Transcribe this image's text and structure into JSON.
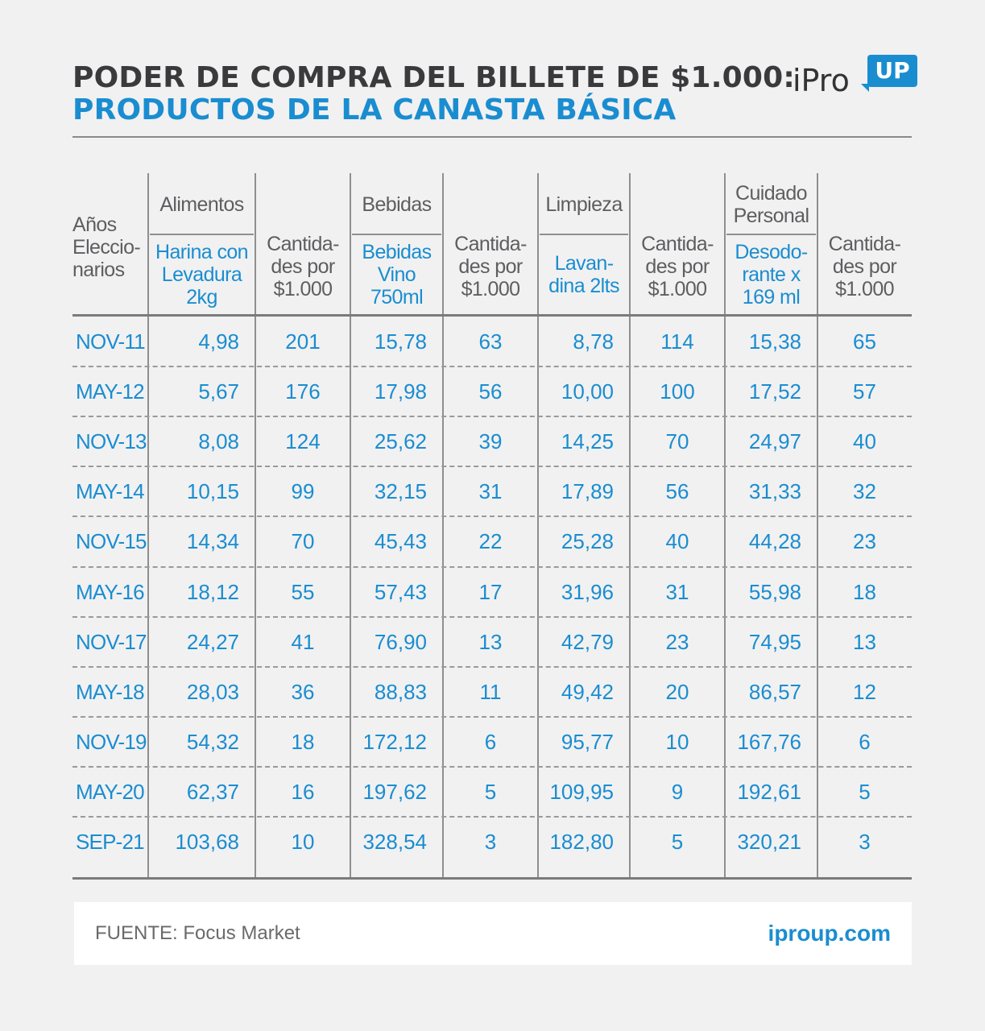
{
  "title_line1": "PODER DE COMPRA DEL BILLETE DE $1.000:",
  "title_line2": "PRODUCTOS DE LA CANASTA BÁSICA",
  "logo": {
    "main": "iPro",
    "badge": "UP"
  },
  "footer": {
    "source": "FUENTE: Focus Market",
    "url": "iproup.com"
  },
  "colors": {
    "blue": "#1a8dd0",
    "dark": "#3a3a3c",
    "gray": "#5e5e60",
    "background": "#f1f1f2"
  },
  "chart_data": {
    "type": "table",
    "title": "PODER DE COMPRA DEL BILLETE DE $1.000: PRODUCTOS DE LA CANASTA BÁSICA",
    "headers": {
      "years": "Años Eleccio- narios",
      "groups": [
        {
          "category": "Alimentos",
          "product": "Harina con Levadura 2kg",
          "quantity": "Cantida- des por $1.000"
        },
        {
          "category": "Bebidas",
          "product": "Bebidas Vino 750ml",
          "quantity": "Cantida- des por $1.000"
        },
        {
          "category": "Limpieza",
          "product": "Lavan- dina 2lts",
          "quantity": "Cantida- des por $1.000"
        },
        {
          "category": "Cuidado Personal",
          "product": "Desodo- rante x 169 ml",
          "quantity": "Cantida- des por $1.000"
        }
      ]
    },
    "rows": [
      [
        "NOV-11",
        "4,98",
        "201",
        "15,78",
        "63",
        "8,78",
        "114",
        "15,38",
        "65"
      ],
      [
        "MAY-12",
        "5,67",
        "176",
        "17,98",
        "56",
        "10,00",
        "100",
        "17,52",
        "57"
      ],
      [
        "NOV-13",
        "8,08",
        "124",
        "25,62",
        "39",
        "14,25",
        "70",
        "24,97",
        "40"
      ],
      [
        "MAY-14",
        "10,15",
        "99",
        "32,15",
        "31",
        "17,89",
        "56",
        "31,33",
        "32"
      ],
      [
        "NOV-15",
        "14,34",
        "70",
        "45,43",
        "22",
        "25,28",
        "40",
        "44,28",
        "23"
      ],
      [
        "MAY-16",
        "18,12",
        "55",
        "57,43",
        "17",
        "31,96",
        "31",
        "55,98",
        "18"
      ],
      [
        "NOV-17",
        "24,27",
        "41",
        "76,90",
        "13",
        "42,79",
        "23",
        "74,95",
        "13"
      ],
      [
        "MAY-18",
        "28,03",
        "36",
        "88,83",
        "11",
        "49,42",
        "20",
        "86,57",
        "12"
      ],
      [
        "NOV-19",
        "54,32",
        "18",
        "172,12",
        "6",
        "95,77",
        "10",
        "167,76",
        "6"
      ],
      [
        "MAY-20",
        "62,37",
        "16",
        "197,62",
        "5",
        "109,95",
        "9",
        "192,61",
        "5"
      ],
      [
        "SEP-21",
        "103,68",
        "10",
        "328,54",
        "3",
        "182,80",
        "5",
        "320,21",
        "3"
      ]
    ]
  }
}
